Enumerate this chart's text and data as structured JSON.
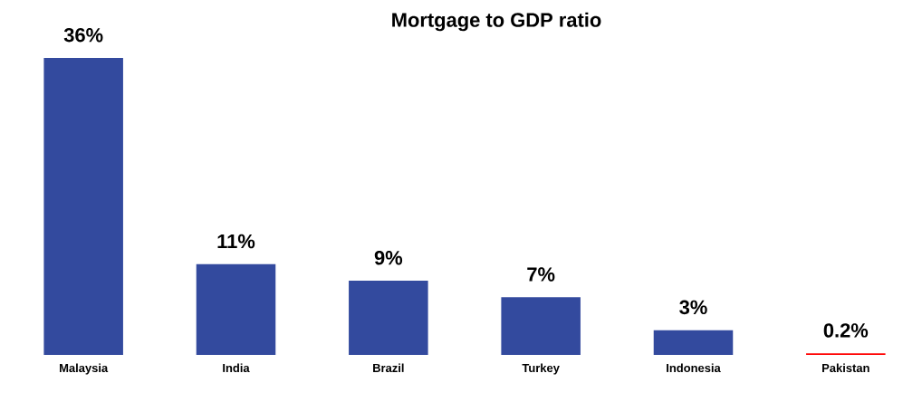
{
  "chart_data": {
    "type": "bar",
    "title": "Mortgage to GDP ratio",
    "categories": [
      "Malaysia",
      "India",
      "Brazil",
      "Turkey",
      "Indonesia",
      "Pakistan"
    ],
    "values": [
      36,
      11,
      9,
      7,
      3,
      0.2
    ],
    "colors": [
      "#334a9e",
      "#334a9e",
      "#334a9e",
      "#334a9e",
      "#334a9e",
      "#ff0000"
    ],
    "value_labels": [
      "36%",
      "11%",
      "9%",
      "7%",
      "3%",
      "0.2%"
    ]
  }
}
